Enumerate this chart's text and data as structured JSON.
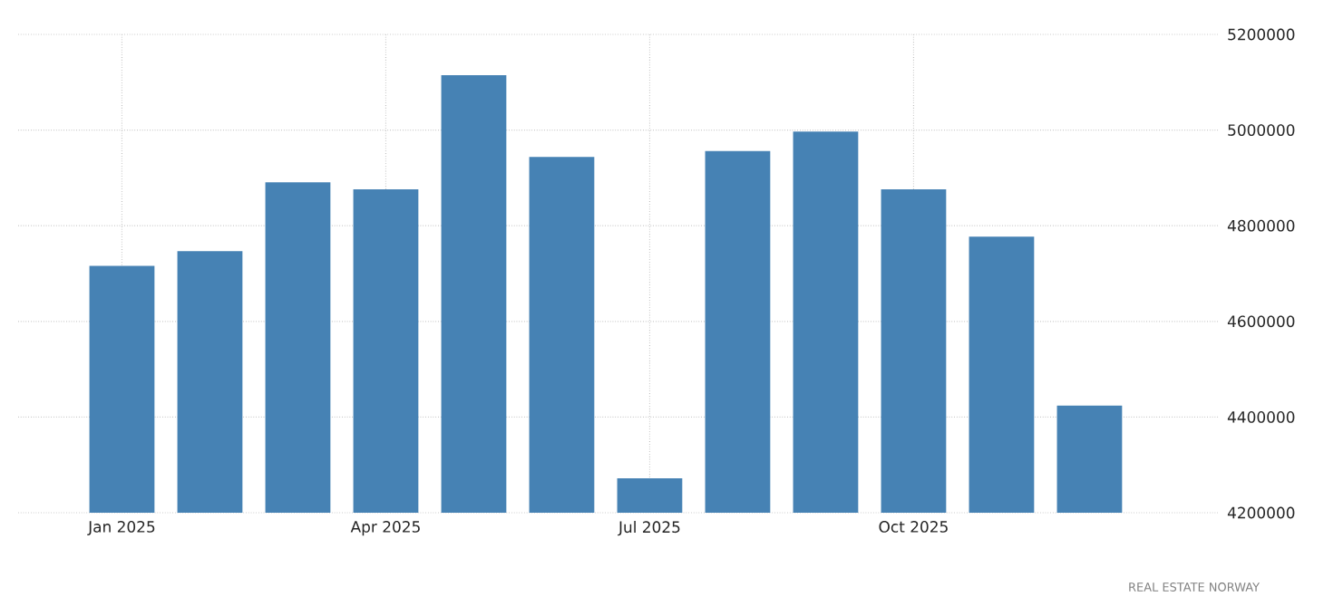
{
  "chart_data": {
    "type": "bar",
    "categories": [
      "Jan 2025",
      null,
      null,
      "Apr 2025",
      null,
      null,
      "Jul 2025",
      null,
      null,
      "Oct 2025",
      null,
      null
    ],
    "values": [
      4716000,
      4747000,
      4891000,
      4876000,
      5115000,
      4944000,
      4272000,
      4956000,
      4997000,
      4876000,
      4777000,
      4424000
    ],
    "color": "#4682b4",
    "ylim": [
      4200000,
      5200000
    ],
    "yticks": [
      4200000,
      4400000,
      4600000,
      4800000,
      5000000,
      5200000
    ],
    "grid": true,
    "annotations": [
      "REAL ESTATE NORWAY"
    ]
  }
}
